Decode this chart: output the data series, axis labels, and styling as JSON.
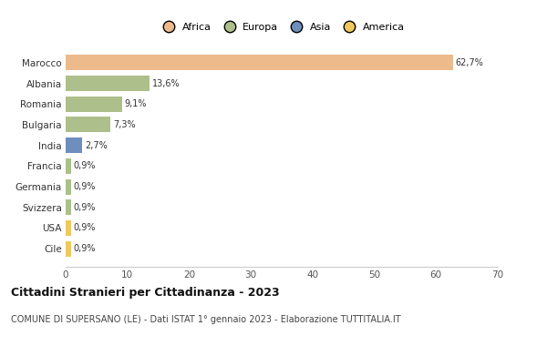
{
  "countries": [
    "Marocco",
    "Albania",
    "Romania",
    "Bulgaria",
    "India",
    "Francia",
    "Germania",
    "Svizzera",
    "USA",
    "Cile"
  ],
  "values": [
    62.7,
    13.6,
    9.1,
    7.3,
    2.7,
    0.9,
    0.9,
    0.9,
    0.9,
    0.9
  ],
  "labels": [
    "62,7%",
    "13,6%",
    "9,1%",
    "7,3%",
    "2,7%",
    "0,9%",
    "0,9%",
    "0,9%",
    "0,9%",
    "0,9%"
  ],
  "colors": [
    "#EDBA8C",
    "#ADBF8A",
    "#ADBF8A",
    "#ADBF8A",
    "#6E8EBD",
    "#ADBF8A",
    "#ADBF8A",
    "#ADBF8A",
    "#F0C860",
    "#F0C860"
  ],
  "legend_labels": [
    "Africa",
    "Europa",
    "Asia",
    "America"
  ],
  "legend_colors": [
    "#EDBA8C",
    "#ADBF8A",
    "#6E8EBD",
    "#F0C860"
  ],
  "xlim": [
    0,
    70
  ],
  "xticks": [
    0,
    10,
    20,
    30,
    40,
    50,
    60,
    70
  ],
  "title": "Cittadini Stranieri per Cittadinanza - 2023",
  "subtitle": "COMUNE DI SUPERSANO (LE) - Dati ISTAT 1° gennaio 2023 - Elaborazione TUTTITALIA.IT",
  "background_color": "#ffffff",
  "bar_height": 0.75,
  "label_fontsize": 7,
  "ytick_fontsize": 7.5,
  "xtick_fontsize": 7.5,
  "legend_fontsize": 8,
  "title_fontsize": 9,
  "subtitle_fontsize": 7
}
